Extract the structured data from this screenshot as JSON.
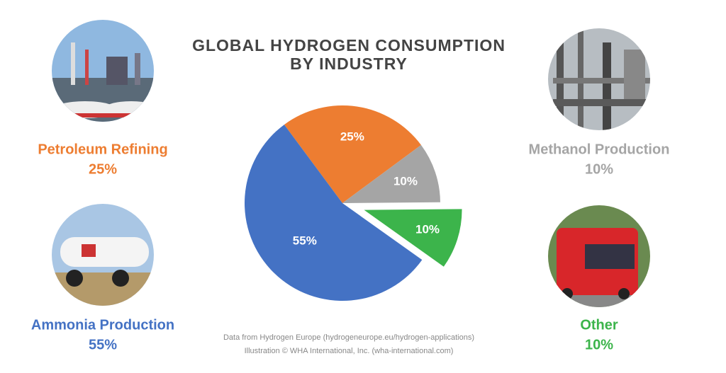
{
  "chart_data": {
    "type": "pie",
    "title": [
      "GLOBAL HYDROGEN CONSUMPTION",
      "BY INDUSTRY"
    ],
    "categories": [
      "Petroleum Refining",
      "Methanol Production",
      "Other",
      "Ammonia Production"
    ],
    "values": [
      25,
      10,
      10,
      55
    ],
    "value_labels": [
      "25%",
      "10%",
      "10%",
      "55%"
    ],
    "colors": [
      "#ed7d31",
      "#a5a5a5",
      "#3cb44b",
      "#4472c4"
    ],
    "exploded": [
      false,
      false,
      true,
      false
    ],
    "notes": [
      "Data from Hydrogen Europe (hydrogeneurope.eu/hydrogen-applications)",
      "Illustration © WHA International, Inc. (wha-international.com)"
    ]
  }
}
